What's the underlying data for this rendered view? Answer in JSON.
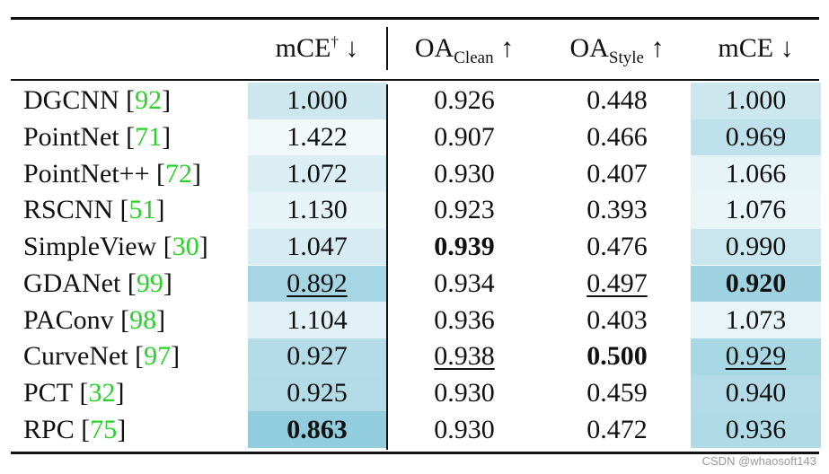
{
  "header": {
    "col1_main": "mCE",
    "col1_sup": "†",
    "col1_arrow": " ↓",
    "col2_main": "OA",
    "col2_sub": "Clean",
    "col2_arrow": " ↑",
    "col3_main": "OA",
    "col3_sub": "Style",
    "col3_arrow": " ↑",
    "col4_main": "mCE",
    "col4_arrow": " ↓"
  },
  "rows": [
    {
      "method": "DGCNN",
      "cite": "92",
      "mce_dagger": "1.000",
      "oa_clean": "0.926",
      "oa_style": "0.448",
      "mce": "1.000",
      "bg1": "#cde7ef",
      "bg4": "#cde7ef"
    },
    {
      "method": "PointNet",
      "cite": "71",
      "mce_dagger": "1.422",
      "oa_clean": "0.907",
      "oa_style": "0.466",
      "mce": "0.969",
      "bg1": "#f3f9fb",
      "bg4": "#bfe1eb"
    },
    {
      "method": "PointNet++",
      "cite": "72",
      "mce_dagger": "1.072",
      "oa_clean": "0.930",
      "oa_style": "0.407",
      "mce": "1.066",
      "bg1": "#dbeef4",
      "bg4": "#e6f3f7"
    },
    {
      "method": "RSCNN",
      "cite": "51",
      "mce_dagger": "1.130",
      "oa_clean": "0.923",
      "oa_style": "0.393",
      "mce": "1.076",
      "bg1": "#e6f3f7",
      "bg4": "#eaf5f8"
    },
    {
      "method": "SimpleView",
      "cite": "30",
      "mce_dagger": "1.047",
      "oa_clean": "0.939",
      "oa_style": "0.476",
      "mce": "0.990",
      "bg1": "#d6ecf2",
      "bg4": "#c9e5ee"
    },
    {
      "method": "GDANet",
      "cite": "99",
      "mce_dagger": "0.892",
      "oa_clean": "0.934",
      "oa_style": "0.497",
      "mce": "0.920",
      "bg1": "#a6d6e3",
      "bg4": "#9fd3e1"
    },
    {
      "method": "PAConv",
      "cite": "98",
      "mce_dagger": "1.104",
      "oa_clean": "0.936",
      "oa_style": "0.403",
      "mce": "1.073",
      "bg1": "#e2f1f6",
      "bg4": "#e8f4f7"
    },
    {
      "method": "CurveNet",
      "cite": "97",
      "mce_dagger": "0.927",
      "oa_clean": "0.938",
      "oa_style": "0.500",
      "mce": "0.929",
      "bg1": "#b4dce8",
      "bg4": "#a9d8e5"
    },
    {
      "method": "PCT",
      "cite": "32",
      "mce_dagger": "0.925",
      "oa_clean": "0.930",
      "oa_style": "0.459",
      "mce": "0.940",
      "bg1": "#b2dbe7",
      "bg4": "#b3dbe7"
    },
    {
      "method": "RPC",
      "cite": "75",
      "mce_dagger": "0.863",
      "oa_clean": "0.930",
      "oa_style": "0.472",
      "mce": "0.936",
      "bg1": "#92cddd",
      "bg4": "#b0dae6"
    }
  ],
  "emphasis": {
    "bold": [
      "4.oa_clean",
      "5.mce",
      "7.oa_style",
      "9.mce_dagger"
    ],
    "underline": [
      "5.mce_dagger",
      "5.oa_style",
      "7.oa_clean",
      "7.mce"
    ]
  },
  "watermark": "CSDN @whaosoft143"
}
